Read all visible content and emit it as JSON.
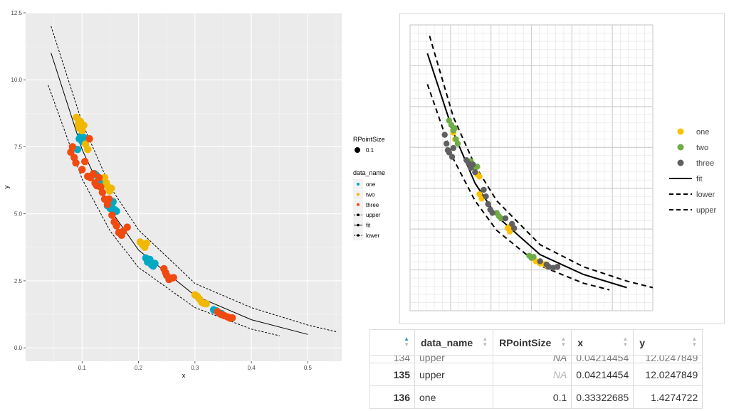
{
  "chart_data": [
    {
      "type": "scatter",
      "title": "",
      "xlabel": "x",
      "ylabel": "y",
      "xlim": [
        0.0,
        0.56
      ],
      "ylim": [
        -0.5,
        12.5
      ],
      "x_ticks": [
        "0.1",
        "0.2",
        "0.3",
        "0.4",
        "0.5"
      ],
      "x_tick_values": [
        0.1,
        0.2,
        0.3,
        0.4,
        0.5
      ],
      "y_ticks": [
        "0.0",
        "2.5",
        "5.0",
        "7.5",
        "10.0",
        "12.5"
      ],
      "y_tick_values": [
        0,
        2.5,
        5,
        7.5,
        10,
        12.5
      ],
      "grid": true,
      "background": "#ebebeb",
      "legend_size_title": "RPointSize",
      "legend_size_label": "0.1",
      "legend_title": "data_name",
      "legend_placement": "right",
      "legend_items": [
        {
          "label": "one",
          "kind": "point",
          "color": "#00a9c3"
        },
        {
          "label": "two",
          "kind": "point",
          "color": "#f0b800"
        },
        {
          "label": "three",
          "kind": "point",
          "color": "#f04a10"
        },
        {
          "label": "upper",
          "kind": "dashed"
        },
        {
          "label": "fit",
          "kind": "solid"
        },
        {
          "label": "lower",
          "kind": "dashed"
        }
      ],
      "series": [
        {
          "name": "one",
          "color": "#00a9c3",
          "points": [
            [
              0.092,
              7.4
            ],
            [
              0.095,
              7.8
            ],
            [
              0.098,
              7.9
            ],
            [
              0.1,
              7.7
            ],
            [
              0.103,
              7.85
            ],
            [
              0.122,
              6.5
            ],
            [
              0.125,
              6.45
            ],
            [
              0.13,
              6.3
            ],
            [
              0.135,
              6.1
            ],
            [
              0.138,
              6.25
            ],
            [
              0.145,
              5.3
            ],
            [
              0.148,
              5.4
            ],
            [
              0.15,
              5.2
            ],
            [
              0.153,
              5.25
            ],
            [
              0.155,
              5.45
            ],
            [
              0.158,
              5.15
            ],
            [
              0.161,
              5.1
            ],
            [
              0.213,
              3.35
            ],
            [
              0.216,
              3.2
            ],
            [
              0.22,
              3.3
            ],
            [
              0.223,
              3.1
            ],
            [
              0.226,
              3.05
            ],
            [
              0.229,
              3.15
            ],
            [
              0.333,
              1.42
            ],
            [
              0.338,
              1.38
            ],
            [
              0.343,
              1.3
            ],
            [
              0.347,
              1.28
            ]
          ]
        },
        {
          "name": "two",
          "color": "#f0b800",
          "points": [
            [
              0.09,
              8.6
            ],
            [
              0.093,
              8.35
            ],
            [
              0.095,
              8.2
            ],
            [
              0.097,
              8.45
            ],
            [
              0.1,
              8.1
            ],
            [
              0.103,
              8.3
            ],
            [
              0.106,
              7.6
            ],
            [
              0.11,
              7.4
            ],
            [
              0.14,
              6.35
            ],
            [
              0.143,
              6.15
            ],
            [
              0.146,
              6.0
            ],
            [
              0.149,
              5.85
            ],
            [
              0.152,
              5.95
            ],
            [
              0.203,
              3.95
            ],
            [
              0.207,
              3.85
            ],
            [
              0.211,
              3.75
            ],
            [
              0.214,
              3.9
            ],
            [
              0.3,
              1.98
            ],
            [
              0.304,
              1.92
            ],
            [
              0.308,
              1.82
            ],
            [
              0.312,
              1.7
            ],
            [
              0.316,
              1.66
            ],
            [
              0.32,
              1.64
            ]
          ]
        },
        {
          "name": "three",
          "color": "#f04a10",
          "points": [
            [
              0.08,
              7.3
            ],
            [
              0.083,
              7.5
            ],
            [
              0.086,
              7.1
            ],
            [
              0.089,
              6.9
            ],
            [
              0.1,
              6.65
            ],
            [
              0.105,
              6.95
            ],
            [
              0.11,
              6.4
            ],
            [
              0.113,
              7.8
            ],
            [
              0.115,
              6.35
            ],
            [
              0.12,
              6.5
            ],
            [
              0.123,
              6.15
            ],
            [
              0.126,
              6.05
            ],
            [
              0.13,
              6.35
            ],
            [
              0.133,
              6.0
            ],
            [
              0.136,
              5.8
            ],
            [
              0.14,
              5.55
            ],
            [
              0.145,
              5.35
            ],
            [
              0.148,
              5.55
            ],
            [
              0.153,
              4.95
            ],
            [
              0.157,
              4.7
            ],
            [
              0.161,
              4.55
            ],
            [
              0.165,
              4.3
            ],
            [
              0.17,
              4.2
            ],
            [
              0.173,
              4.35
            ],
            [
              0.18,
              4.5
            ],
            [
              0.245,
              2.95
            ],
            [
              0.248,
              2.8
            ],
            [
              0.25,
              2.7
            ],
            [
              0.254,
              2.55
            ],
            [
              0.258,
              2.6
            ],
            [
              0.262,
              2.62
            ],
            [
              0.34,
              1.35
            ],
            [
              0.346,
              1.25
            ],
            [
              0.352,
              1.2
            ],
            [
              0.358,
              1.15
            ],
            [
              0.363,
              1.1
            ],
            [
              0.366,
              1.12
            ]
          ]
        },
        {
          "name": "fit",
          "style": "solid",
          "color": "#000000",
          "points": [
            [
              0.045,
              11.0
            ],
            [
              0.1,
              7.4
            ],
            [
              0.15,
              5.15
            ],
            [
              0.2,
              3.65
            ],
            [
              0.3,
              1.95
            ],
            [
              0.4,
              1.05
            ],
            [
              0.5,
              0.5
            ]
          ]
        },
        {
          "name": "upper",
          "style": "dashed",
          "color": "#000000",
          "points": [
            [
              0.045,
              12.0
            ],
            [
              0.1,
              8.4
            ],
            [
              0.15,
              6.0
            ],
            [
              0.2,
              4.4
            ],
            [
              0.3,
              2.4
            ],
            [
              0.4,
              1.5
            ],
            [
              0.5,
              0.85
            ],
            [
              0.55,
              0.6
            ]
          ]
        },
        {
          "name": "lower",
          "style": "dashed",
          "color": "#000000",
          "points": [
            [
              0.04,
              9.8
            ],
            [
              0.1,
              6.3
            ],
            [
              0.15,
              4.35
            ],
            [
              0.2,
              3.0
            ],
            [
              0.3,
              1.5
            ],
            [
              0.4,
              0.7
            ],
            [
              0.45,
              0.45
            ]
          ]
        }
      ]
    },
    {
      "type": "scatter",
      "title": "",
      "xlim": [
        0.0,
        0.56
      ],
      "ylim": [
        -0.5,
        12.5
      ],
      "grid": true,
      "legend_placement": "right",
      "legend_items": [
        {
          "label": "one",
          "kind": "point",
          "color": "#ffc000"
        },
        {
          "label": "two",
          "kind": "point",
          "color": "#6fac46"
        },
        {
          "label": "three",
          "kind": "point",
          "color": "#606060"
        },
        {
          "label": "fit",
          "kind": "solid"
        },
        {
          "label": "lower",
          "kind": "dashed"
        },
        {
          "label": "upper",
          "kind": "dashed"
        }
      ],
      "series": [
        {
          "name": "one",
          "color": "#ffc000",
          "points": [
            [
              0.1,
              7.6
            ],
            [
              0.104,
              7.3
            ],
            [
              0.155,
              5.7
            ],
            [
              0.16,
              5.6
            ],
            [
              0.16,
              4.8
            ],
            [
              0.165,
              4.6
            ],
            [
              0.225,
              3.25
            ],
            [
              0.23,
              3.1
            ],
            [
              0.228,
              3.3
            ],
            [
              0.29,
              1.75
            ],
            [
              0.3,
              1.65
            ],
            [
              0.31,
              1.62
            ],
            [
              0.315,
              1.55
            ]
          ]
        },
        {
          "name": "two",
          "color": "#6fac46",
          "points": [
            [
              0.09,
              8.15
            ],
            [
              0.095,
              7.95
            ],
            [
              0.1,
              7.7
            ],
            [
              0.103,
              7.8
            ],
            [
              0.106,
              7.3
            ],
            [
              0.11,
              7.1
            ],
            [
              0.14,
              6.3
            ],
            [
              0.145,
              6.1
            ],
            [
              0.15,
              6.0
            ],
            [
              0.155,
              6.05
            ],
            [
              0.2,
              3.95
            ],
            [
              0.205,
              3.8
            ],
            [
              0.21,
              3.7
            ],
            [
              0.275,
              2.0
            ],
            [
              0.28,
              1.9
            ],
            [
              0.285,
              1.95
            ]
          ]
        },
        {
          "name": "three",
          "color": "#606060",
          "points": [
            [
              0.08,
              7.5
            ],
            [
              0.084,
              7.1
            ],
            [
              0.087,
              6.8
            ],
            [
              0.09,
              6.7
            ],
            [
              0.097,
              6.5
            ],
            [
              0.1,
              6.9
            ],
            [
              0.13,
              6.35
            ],
            [
              0.135,
              6.2
            ],
            [
              0.14,
              6.0
            ],
            [
              0.145,
              6.15
            ],
            [
              0.15,
              5.8
            ],
            [
              0.17,
              5.0
            ],
            [
              0.175,
              4.7
            ],
            [
              0.18,
              4.35
            ],
            [
              0.185,
              4.1
            ],
            [
              0.19,
              3.95
            ],
            [
              0.22,
              3.7
            ],
            [
              0.235,
              3.45
            ],
            [
              0.24,
              3.25
            ],
            [
              0.3,
              1.75
            ],
            [
              0.315,
              1.6
            ],
            [
              0.32,
              1.5
            ],
            [
              0.33,
              1.45
            ],
            [
              0.34,
              1.5
            ]
          ]
        },
        {
          "name": "fit",
          "style": "solid",
          "color": "#000000",
          "points": [
            [
              0.04,
              11.2
            ],
            [
              0.1,
              7.6
            ],
            [
              0.15,
              5.3
            ],
            [
              0.2,
              3.8
            ],
            [
              0.3,
              2.05
            ],
            [
              0.4,
              1.15
            ],
            [
              0.5,
              0.55
            ]
          ]
        },
        {
          "name": "lower",
          "style": "dashed",
          "color": "#000000",
          "points": [
            [
              0.04,
              9.8
            ],
            [
              0.1,
              6.4
            ],
            [
              0.15,
              4.5
            ],
            [
              0.2,
              3.15
            ],
            [
              0.3,
              1.55
            ],
            [
              0.4,
              0.75
            ],
            [
              0.46,
              0.45
            ]
          ]
        },
        {
          "name": "upper",
          "style": "dashed",
          "color": "#000000",
          "points": [
            [
              0.045,
              12.0
            ],
            [
              0.1,
              8.3
            ],
            [
              0.15,
              6.1
            ],
            [
              0.2,
              4.5
            ],
            [
              0.3,
              2.5
            ],
            [
              0.4,
              1.5
            ],
            [
              0.5,
              0.85
            ],
            [
              0.56,
              0.55
            ]
          ]
        }
      ]
    }
  ],
  "table": {
    "headers": [
      "data_name",
      "RPointSize",
      "x",
      "y"
    ],
    "partial_row": {
      "index": "134",
      "data_name": "upper",
      "RPointSize": "NA",
      "x": "0.04214454",
      "y": "12.0247849"
    },
    "rows": [
      {
        "index": "135",
        "data_name": "upper",
        "RPointSize": "NA",
        "x": "0.04214454",
        "y": "12.0247849"
      },
      {
        "index": "136",
        "data_name": "one",
        "RPointSize": "0.1",
        "x": "0.33322685",
        "y": "1.4274722"
      }
    ]
  }
}
